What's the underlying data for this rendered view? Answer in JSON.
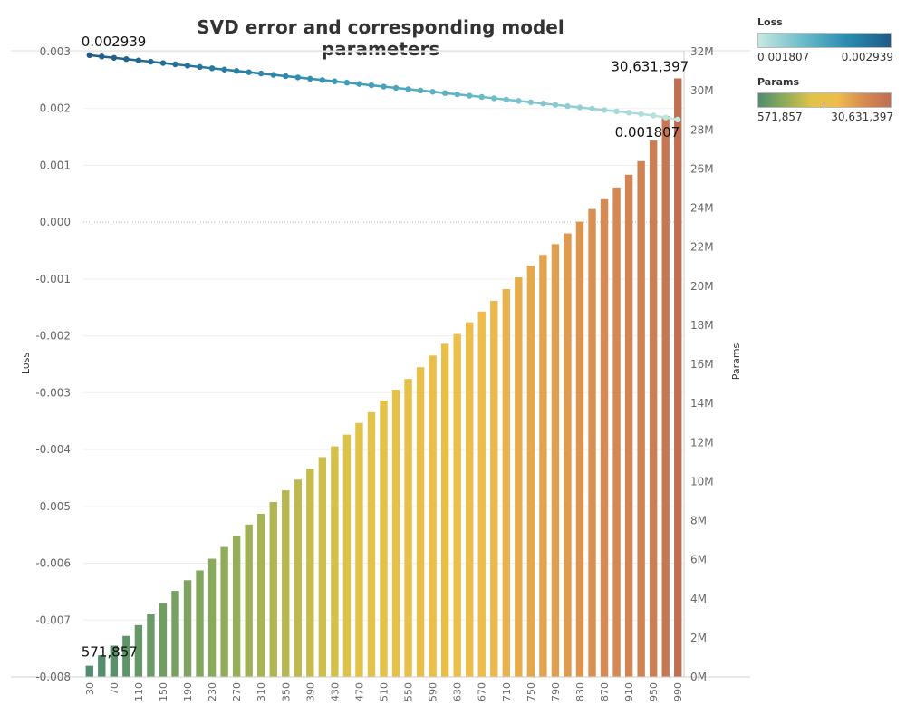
{
  "chart_data": {
    "type": "bar",
    "title": "SVD error and corresponding model parameters",
    "x": [
      30,
      50,
      70,
      90,
      110,
      130,
      150,
      170,
      190,
      210,
      230,
      250,
      270,
      290,
      310,
      330,
      350,
      370,
      390,
      410,
      430,
      450,
      470,
      490,
      510,
      530,
      550,
      570,
      590,
      610,
      630,
      650,
      670,
      690,
      710,
      730,
      750,
      770,
      790,
      810,
      830,
      850,
      870,
      890,
      910,
      930,
      950,
      970,
      990
    ],
    "x_tick_labels": [
      "30",
      "70",
      "110",
      "150",
      "190",
      "230",
      "270",
      "310",
      "350",
      "390",
      "430",
      "470",
      "510",
      "550",
      "590",
      "630",
      "670",
      "710",
      "750",
      "790",
      "830",
      "870",
      "910",
      "950",
      "990"
    ],
    "series": [
      {
        "name": "Loss",
        "type": "line",
        "axis": "left",
        "values": [
          0.002939,
          0.002915,
          0.002892,
          0.002869,
          0.002846,
          0.002823,
          0.0028,
          0.002777,
          0.002754,
          0.002731,
          0.002708,
          0.002685,
          0.002662,
          0.002639,
          0.002616,
          0.002593,
          0.00257,
          0.002547,
          0.002524,
          0.002501,
          0.002478,
          0.002455,
          0.002432,
          0.002409,
          0.002386,
          0.002363,
          0.00234,
          0.002317,
          0.002294,
          0.002271,
          0.002249,
          0.002226,
          0.002203,
          0.00218,
          0.002157,
          0.002134,
          0.002111,
          0.002088,
          0.002065,
          0.002042,
          0.002019,
          0.001996,
          0.001973,
          0.00195,
          0.001927,
          0.001904,
          0.001876,
          0.001842,
          0.001807
        ]
      },
      {
        "name": "Params",
        "type": "bar",
        "axis": "right",
        "values": [
          571857,
          1100000,
          1600000,
          2100000,
          2650000,
          3200000,
          3800000,
          4400000,
          4950000,
          5450000,
          6050000,
          6650000,
          7200000,
          7800000,
          8350000,
          8950000,
          9550000,
          10100000,
          10650000,
          11250000,
          11800000,
          12400000,
          13000000,
          13550000,
          14150000,
          14700000,
          15250000,
          15850000,
          16450000,
          17050000,
          17550000,
          18150000,
          18700000,
          19250000,
          19850000,
          20450000,
          21050000,
          21600000,
          22150000,
          22700000,
          23300000,
          23950000,
          24450000,
          25050000,
          25700000,
          26400000,
          27450000,
          28700000,
          30631397
        ]
      }
    ],
    "y_left": {
      "label": "Loss",
      "min": -0.008,
      "max": 0.003,
      "ticks": [
        0.003,
        0.002,
        0.001,
        0.0,
        -0.001,
        -0.002,
        -0.003,
        -0.004,
        -0.005,
        -0.006,
        -0.007,
        -0.008
      ],
      "tick_labels": [
        "0.003",
        "0.002",
        "0.001",
        "0.000",
        "-0.001",
        "-0.002",
        "-0.003",
        "-0.004",
        "-0.005",
        "-0.006",
        "-0.007",
        "-0.008"
      ]
    },
    "y_right": {
      "label": "Params",
      "min": 0,
      "max": 32000000,
      "ticks": [
        32000000,
        30000000,
        28000000,
        26000000,
        24000000,
        22000000,
        20000000,
        18000000,
        16000000,
        14000000,
        12000000,
        10000000,
        8000000,
        6000000,
        4000000,
        2000000,
        0
      ],
      "tick_labels": [
        "32M",
        "30M",
        "28M",
        "26M",
        "24M",
        "22M",
        "20M",
        "18M",
        "16M",
        "14M",
        "12M",
        "10M",
        "8M",
        "6M",
        "4M",
        "2M",
        "0M"
      ]
    },
    "annotations": [
      {
        "series": "Loss",
        "index": 0,
        "text": "0.002939",
        "position": "above"
      },
      {
        "series": "Loss",
        "index": 48,
        "text": "0.001807",
        "position": "below-left"
      },
      {
        "series": "Params",
        "index": 0,
        "text": "571,857",
        "position": "above"
      },
      {
        "series": "Params",
        "index": 48,
        "text": "30,631,397",
        "position": "above-left"
      }
    ],
    "grid": true,
    "zero_line": "dotted",
    "legend_placement": "top-right",
    "legends": [
      {
        "title": "Loss",
        "min_label": "0.001807",
        "max_label": "0.002939",
        "colors": [
          "#c8e8e2",
          "#6cbcc8",
          "#2b8cb0",
          "#1f5a85"
        ]
      },
      {
        "title": "Params",
        "min_label": "571,857",
        "max_label": "30,631,397",
        "colors": [
          "#4f8c70",
          "#8fac5a",
          "#e0c348",
          "#eebd4a",
          "#d68a52",
          "#c06e52"
        ]
      }
    ]
  }
}
